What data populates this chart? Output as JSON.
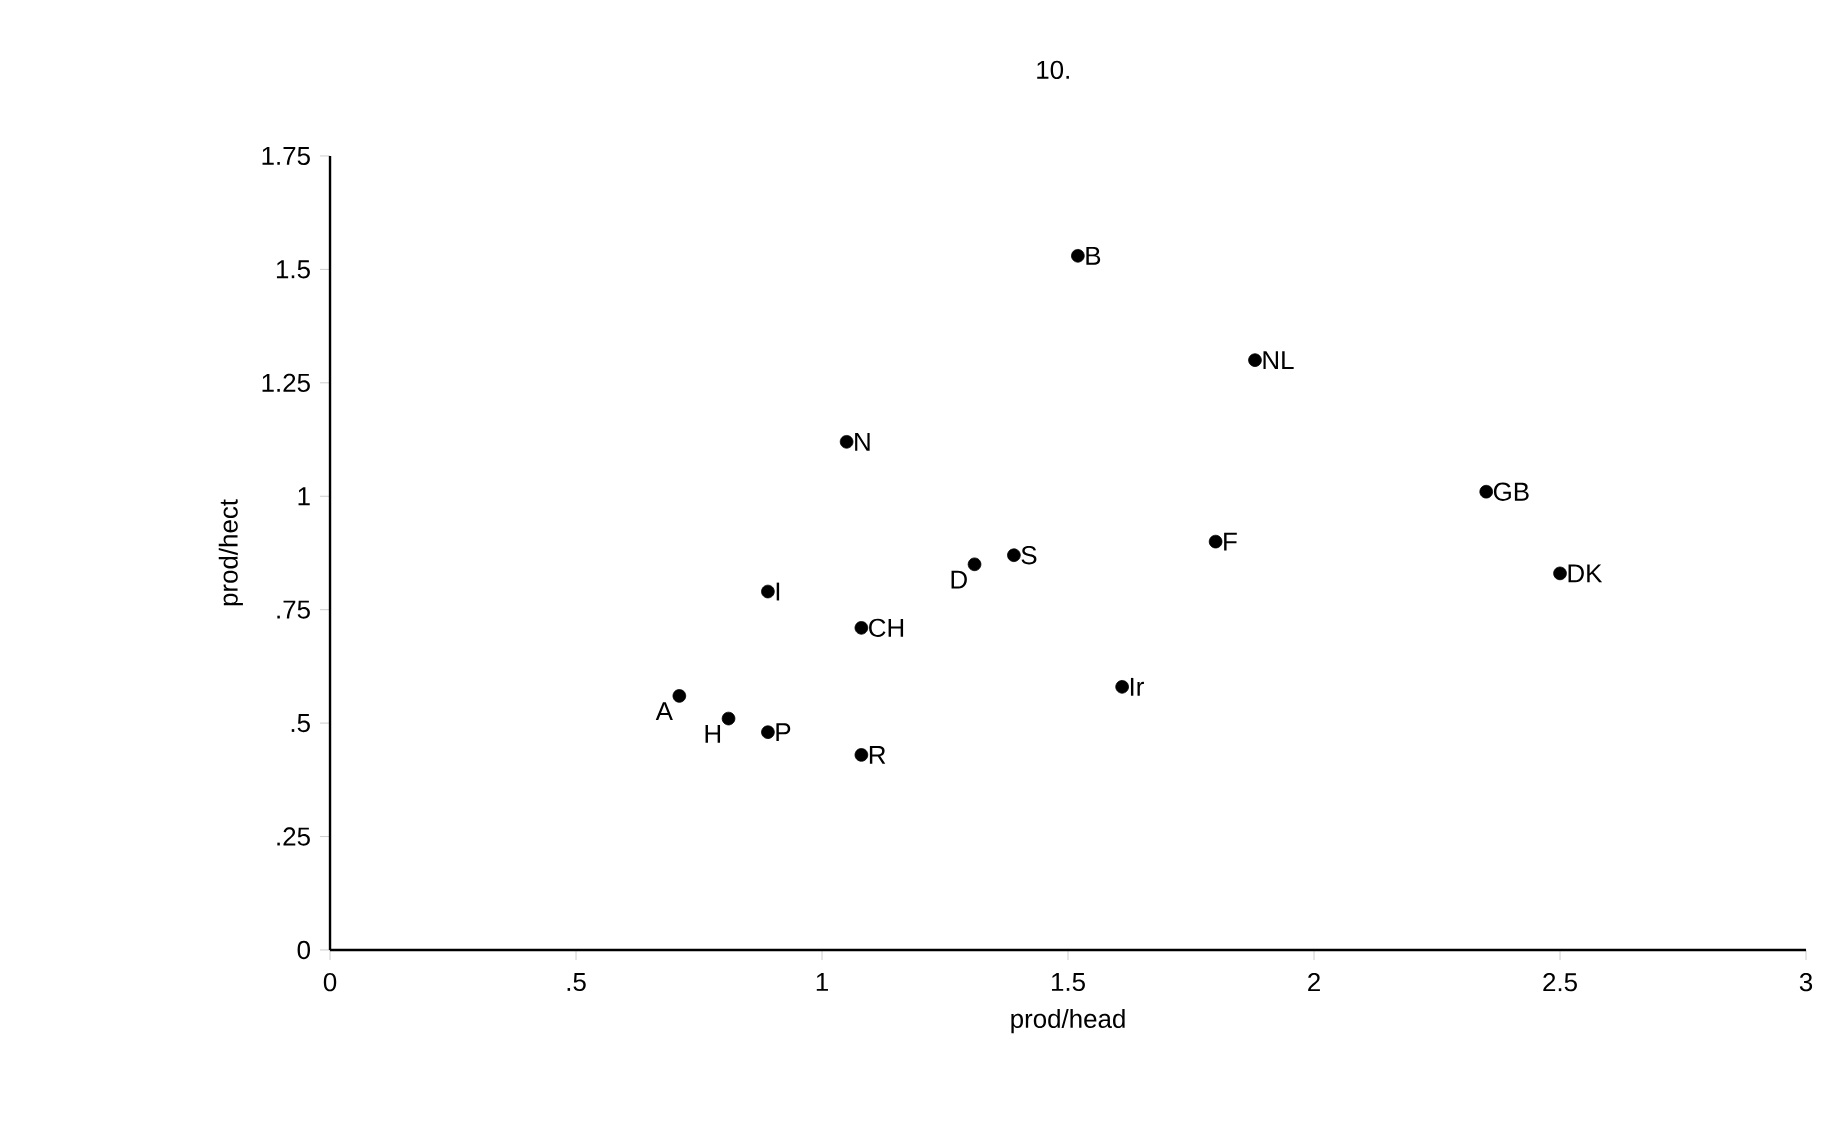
{
  "chart_data": {
    "type": "scatter",
    "title": "10.",
    "xlabel": "prod/head",
    "ylabel": "prod/hect",
    "marker": "circle",
    "color": "#000000",
    "x": [
      1.52,
      1.88,
      1.05,
      2.35,
      2.5,
      1.8,
      1.39,
      1.31,
      0.89,
      1.08,
      1.61,
      0.71,
      0.81,
      0.89,
      1.08
    ],
    "values": [
      1.53,
      1.3,
      1.12,
      1.01,
      0.83,
      0.9,
      0.87,
      0.85,
      0.79,
      0.71,
      0.58,
      0.56,
      0.51,
      0.48,
      0.43
    ],
    "annotations": [
      {
        "text": "B",
        "x": 1.52,
        "y": 1.53
      },
      {
        "text": "NL",
        "x": 1.88,
        "y": 1.3
      },
      {
        "text": "N",
        "x": 1.05,
        "y": 1.12
      },
      {
        "text": "GB",
        "x": 2.35,
        "y": 1.01
      },
      {
        "text": "DK",
        "x": 2.5,
        "y": 0.83
      },
      {
        "text": "F",
        "x": 1.8,
        "y": 0.9
      },
      {
        "text": "S",
        "x": 1.39,
        "y": 0.87
      },
      {
        "text": "D",
        "x": 1.31,
        "y": 0.85
      },
      {
        "text": "I",
        "x": 0.89,
        "y": 0.79
      },
      {
        "text": "CH",
        "x": 1.08,
        "y": 0.71
      },
      {
        "text": "Ir",
        "x": 1.61,
        "y": 0.58
      },
      {
        "text": "A",
        "x": 0.71,
        "y": 0.56
      },
      {
        "text": "H",
        "x": 0.81,
        "y": 0.51
      },
      {
        "text": "P",
        "x": 0.89,
        "y": 0.48
      },
      {
        "text": "R",
        "x": 1.08,
        "y": 0.43
      }
    ],
    "xlim": [
      0,
      3
    ],
    "ylim": [
      0,
      1.75
    ],
    "xticks": [
      0,
      {
        "value": 0.5,
        "label": ".5"
      },
      1,
      1.5,
      2,
      2.5,
      3
    ],
    "yticks": [
      0,
      {
        "value": 0.25,
        "label": ".25"
      },
      {
        "value": 0.5,
        "label": ".5"
      },
      {
        "value": 0.75,
        "label": ".75"
      },
      1,
      1.25,
      1.5,
      1.75
    ]
  }
}
